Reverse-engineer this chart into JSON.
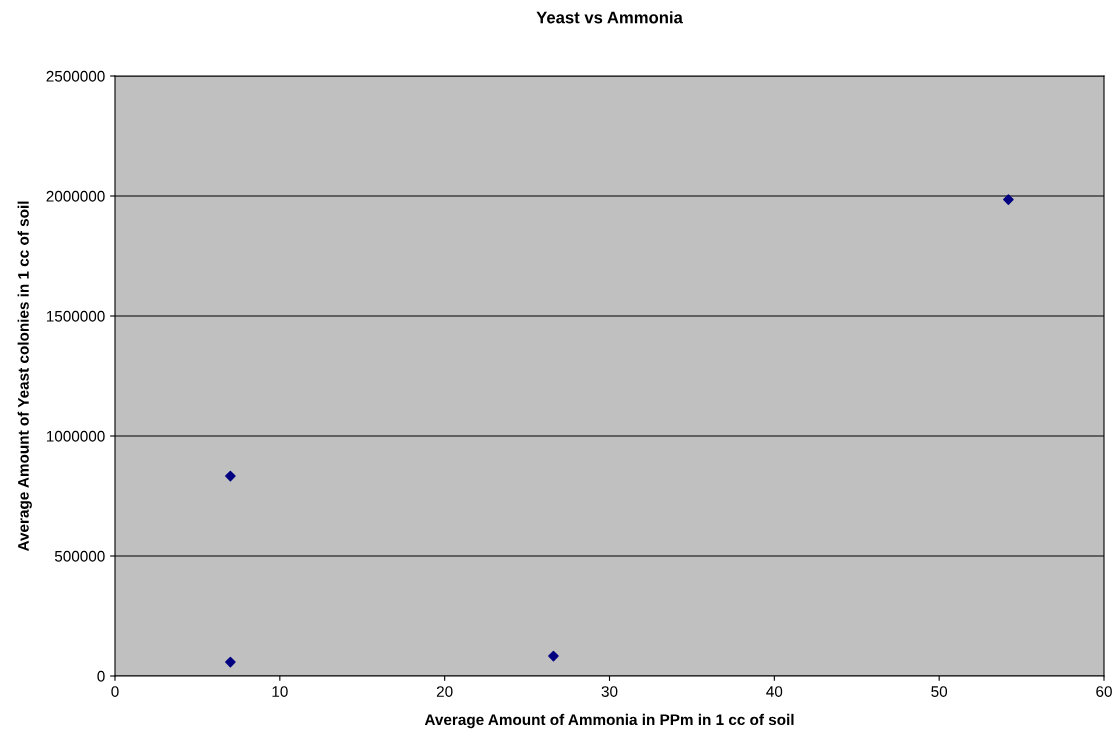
{
  "chart_data": {
    "type": "scatter",
    "title": "Yeast vs Ammonia",
    "xlabel": "Average Amount of Ammonia in PPm in 1 cc of soil",
    "ylabel": "Average Amount of Yeast colonies in 1 cc of soil",
    "series": [
      {
        "color": "#000080",
        "x": [
          7.0,
          7.0,
          26.6,
          54.2
        ],
        "values": [
          833000,
          58000,
          83000,
          1985000
        ]
      }
    ],
    "xlim": [
      0,
      60
    ],
    "xticks": [
      0,
      10,
      20,
      30,
      40,
      50,
      60
    ],
    "ylim": [
      0,
      2500000
    ],
    "yticks": [
      0,
      500000,
      1000000,
      1500000,
      2000000,
      2500000
    ],
    "grid": "y",
    "marker": "diamond",
    "legend": false
  }
}
